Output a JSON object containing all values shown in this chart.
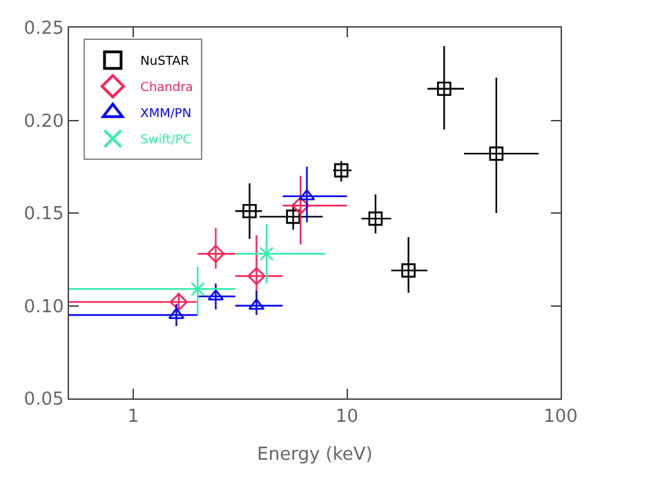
{
  "chart_data": {
    "type": "scatter",
    "xlabel": "Energy (keV)",
    "log": "x",
    "xlim": [
      0.5,
      100
    ],
    "xticks": [
      1,
      10,
      100
    ],
    "ylim": [
      0.05,
      0.25
    ],
    "yticks": [
      {
        "value": 0.05,
        "label": "0.05"
      },
      {
        "value": 0.1,
        "label": "0.10"
      },
      {
        "value": 0.15,
        "label": "0.15"
      },
      {
        "value": 0.2,
        "label": "0.20"
      },
      {
        "value": 0.25,
        "label": "0.25"
      }
    ],
    "legend": "top left",
    "series": [
      {
        "name": "NuSTAR",
        "color": "#000000",
        "marker": "square",
        "x": [
          3.5,
          5.6,
          9.4,
          13.6,
          19.4,
          28.5,
          50
        ],
        "values": [
          0.151,
          0.148,
          0.173,
          0.147,
          0.119,
          0.217,
          0.182
        ],
        "xerrors": [
          [
            3.0,
            4.0
          ],
          [
            3.9,
            7.7
          ],
          [
            8.6,
            10.5
          ],
          [
            11.7,
            16.1
          ],
          [
            16.1,
            23.8
          ],
          [
            23.8,
            35.3
          ],
          [
            35.3,
            79
          ]
        ],
        "errors": [
          [
            0.136,
            0.166
          ],
          [
            0.141,
            0.155
          ],
          [
            0.167,
            0.178
          ],
          [
            0.139,
            0.16
          ],
          [
            0.107,
            0.137
          ],
          [
            0.195,
            0.24
          ],
          [
            0.15,
            0.223
          ]
        ]
      },
      {
        "name": "Chandra",
        "color": "#ff2255",
        "marker": "diamond",
        "x": [
          1.63,
          2.43,
          3.77,
          6.06
        ],
        "values": [
          0.102,
          0.128,
          0.116,
          0.154
        ],
        "xerrors": [
          [
            0.5,
            2.0
          ],
          [
            2.0,
            3.0
          ],
          [
            3.0,
            5.0
          ],
          [
            5.0,
            10
          ]
        ],
        "errors": [
          [
            0.097,
            0.107
          ],
          [
            0.12,
            0.142
          ],
          [
            0.104,
            0.138
          ],
          [
            0.133,
            0.17
          ]
        ]
      },
      {
        "name": "XMM/PN",
        "color": "#0000ff",
        "marker": "triangle",
        "x": [
          1.59,
          2.43,
          3.77,
          6.49
        ],
        "values": [
          0.095,
          0.105,
          0.1,
          0.159
        ],
        "xerrors": [
          [
            0.5,
            2.0
          ],
          [
            2.0,
            3.0
          ],
          [
            3.0,
            5.0
          ],
          [
            5.0,
            10
          ]
        ],
        "errors": [
          [
            0.089,
            0.101
          ],
          [
            0.098,
            0.112
          ],
          [
            0.095,
            0.108
          ],
          [
            0.145,
            0.175
          ]
        ]
      },
      {
        "name": "Swift/PC",
        "color": "#33eeaa",
        "marker": "cross",
        "x": [
          2.0,
          4.2
        ],
        "values": [
          0.109,
          0.128
        ],
        "xerrors": [
          [
            0.5,
            3.0
          ],
          [
            3.0,
            7.9
          ]
        ],
        "errors": [
          [
            0.095,
            0.121
          ],
          [
            0.112,
            0.144
          ]
        ]
      }
    ]
  }
}
